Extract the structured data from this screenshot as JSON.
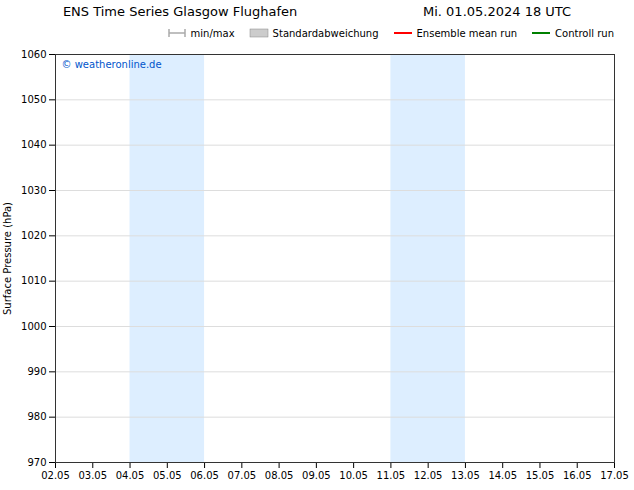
{
  "chart_data": {
    "type": "line",
    "title": "ENS Time Series Glasgow Flughafen",
    "subtitle": "Mi. 01.05.2024 18 UTC",
    "y_label": "Surface Pressure (hPa)",
    "ylim": [
      970,
      1060
    ],
    "yticks": [
      970,
      980,
      990,
      1000,
      1010,
      1020,
      1030,
      1040,
      1050,
      1060
    ],
    "xlim": [
      2.05,
      17.05
    ],
    "xticks": [
      {
        "value": 2.05,
        "label": "02.05"
      },
      {
        "value": 3.05,
        "label": "03.05"
      },
      {
        "value": 4.05,
        "label": "04.05"
      },
      {
        "value": 5.05,
        "label": "05.05"
      },
      {
        "value": 6.05,
        "label": "06.05"
      },
      {
        "value": 7.05,
        "label": "07.05"
      },
      {
        "value": 8.05,
        "label": "08.05"
      },
      {
        "value": 9.05,
        "label": "09.05"
      },
      {
        "value": 10.05,
        "label": "10.05"
      },
      {
        "value": 11.05,
        "label": "11.05"
      },
      {
        "value": 12.05,
        "label": "12.05"
      },
      {
        "value": 13.05,
        "label": "13.05"
      },
      {
        "value": 14.05,
        "label": "14.05"
      },
      {
        "value": 15.05,
        "label": "15.05"
      },
      {
        "value": 16.05,
        "label": "16.05"
      },
      {
        "value": 17.05,
        "label": "17.05"
      }
    ],
    "shaded_regions": [
      {
        "from": 4.05,
        "to": 6.05,
        "color": "#ddeeff"
      },
      {
        "from": 11.05,
        "to": 13.05,
        "color": "#ddeeff"
      }
    ],
    "annotations": [
      {
        "text": "© weatheronline.de",
        "color": "#0055cc"
      }
    ],
    "series": [
      {
        "name": "min/max",
        "type": "range",
        "color": "#aaaaaa",
        "values": []
      },
      {
        "name": "Standardabweichung",
        "type": "area",
        "color": "#cccccc",
        "values": []
      },
      {
        "name": "Ensemble mean run",
        "type": "line",
        "color": "#ff0000",
        "values": []
      },
      {
        "name": "Controll run",
        "type": "line",
        "color": "#008000",
        "values": []
      }
    ],
    "grid": "y",
    "legend": "upper right"
  }
}
